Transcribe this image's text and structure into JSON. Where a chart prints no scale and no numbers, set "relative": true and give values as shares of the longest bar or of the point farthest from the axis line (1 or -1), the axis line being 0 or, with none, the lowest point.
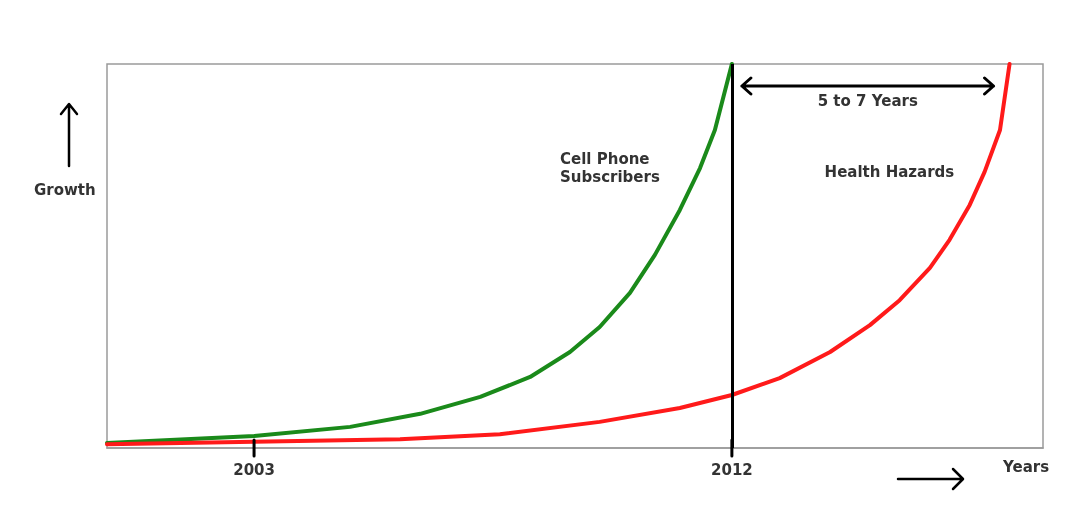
{
  "chart_data": {
    "type": "line",
    "relative": true,
    "xlabel": "Years",
    "ylabel": "Growth",
    "xlim": [
      2000.23,
      2017.86
    ],
    "xticks": [
      2003,
      2012
    ],
    "grid": false,
    "legend": false,
    "marker": "none",
    "line_style": "solid",
    "annotations": [
      "5 to 7 Years"
    ],
    "ref_lines": [
      {
        "axis": "x",
        "value": 2012,
        "color": "#000000"
      }
    ],
    "series": [
      {
        "name": "Cell Phone Subscribers",
        "color": "#1a8a1a",
        "x": [
          2000.23,
          2003,
          2004.81,
          2006.13,
          2007.26,
          2008.2,
          2008.95,
          2009.51,
          2010.08,
          2010.55,
          2011.02,
          2011.4,
          2011.68,
          2012
        ],
        "values": [
          0.013,
          0.031,
          0.055,
          0.089,
          0.133,
          0.185,
          0.25,
          0.315,
          0.404,
          0.503,
          0.62,
          0.729,
          0.828,
          1
        ]
      },
      {
        "name": "Health Hazards",
        "color": "#ff1a1a",
        "x": [
          2000.23,
          2003,
          2005.75,
          2007.63,
          2009.51,
          2011.02,
          2012,
          2012.9,
          2013.85,
          2014.6,
          2015.16,
          2015.73,
          2016.1,
          2016.48,
          2016.76,
          2017.05,
          2017.23
        ],
        "values": [
          0.01,
          0.016,
          0.023,
          0.036,
          0.068,
          0.104,
          0.138,
          0.182,
          0.25,
          0.32,
          0.385,
          0.469,
          0.542,
          0.633,
          0.719,
          0.828,
          1
        ]
      }
    ]
  }
}
